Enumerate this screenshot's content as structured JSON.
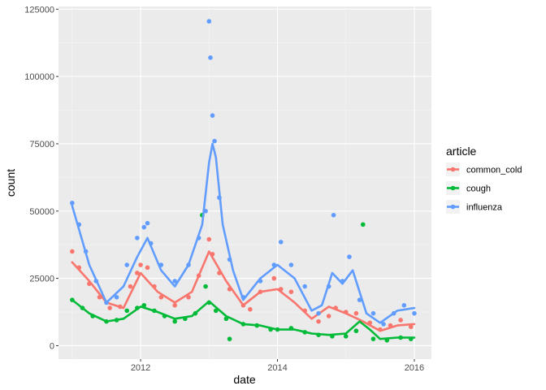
{
  "chart_data": {
    "type": "scatter",
    "xlabel": "date",
    "ylabel": "count",
    "legend_title": "article",
    "legend_position": "right",
    "grid": true,
    "xlim": [
      2010.8,
      2016.25
    ],
    "ylim": [
      -5000,
      126000
    ],
    "x_ticks": [
      2012,
      2014,
      2016
    ],
    "x_tick_labels": [
      "2012",
      "2014",
      "2016"
    ],
    "y_ticks": [
      0,
      25000,
      50000,
      75000,
      100000,
      125000
    ],
    "y_tick_labels": [
      "0",
      "25000",
      "50000",
      "75000",
      "100000",
      "125000"
    ],
    "series": [
      {
        "name": "common_cold",
        "color": "#F8766D",
        "x": [
          2011.0,
          2011.1,
          2011.25,
          2011.4,
          2011.55,
          2011.7,
          2011.85,
          2011.95,
          2012.0,
          2012.1,
          2012.2,
          2012.3,
          2012.5,
          2012.7,
          2012.85,
          2013.0,
          2013.05,
          2013.15,
          2013.3,
          2013.5,
          2013.6,
          2013.75,
          2013.95,
          2014.05,
          2014.2,
          2014.4,
          2014.6,
          2014.75,
          2014.85,
          2015.0,
          2015.15,
          2015.35,
          2015.5,
          2015.65,
          2015.8,
          2015.95
        ],
        "y": [
          35000,
          29000,
          23000,
          18000,
          14000,
          14500,
          22000,
          27000,
          30000,
          29000,
          22000,
          18000,
          15000,
          18000,
          26000,
          39500,
          34000,
          27000,
          21000,
          15000,
          13500,
          20000,
          25000,
          21000,
          20000,
          13000,
          9000,
          11000,
          14000,
          12500,
          12000,
          8500,
          6000,
          7500,
          9500,
          7000
        ],
        "trend_x": [
          2011.0,
          2011.25,
          2011.5,
          2011.75,
          2012.0,
          2012.25,
          2012.5,
          2012.75,
          2013.0,
          2013.25,
          2013.5,
          2013.75,
          2014.0,
          2014.25,
          2014.5,
          2014.75,
          2015.0,
          2015.25,
          2015.5,
          2015.75,
          2016.0
        ],
        "trend_y": [
          31000,
          24000,
          16000,
          14000,
          27000,
          20000,
          16000,
          20000,
          35000,
          24000,
          15000,
          20000,
          21000,
          16000,
          10000,
          14500,
          12000,
          9000,
          5500,
          7500,
          8000
        ]
      },
      {
        "name": "cough",
        "color": "#00BA38",
        "x": [
          2011.0,
          2011.15,
          2011.3,
          2011.5,
          2011.65,
          2011.8,
          2011.95,
          2012.05,
          2012.2,
          2012.35,
          2012.5,
          2012.65,
          2012.8,
          2012.9,
          2012.95,
          2013.0,
          2013.1,
          2013.25,
          2013.3,
          2013.5,
          2013.7,
          2013.9,
          2014.0,
          2014.2,
          2014.4,
          2014.6,
          2014.8,
          2015.0,
          2015.15,
          2015.25,
          2015.4,
          2015.6,
          2015.8,
          2015.95
        ],
        "y": [
          17000,
          14000,
          11000,
          9000,
          9500,
          13000,
          14000,
          15000,
          13000,
          11000,
          9000,
          10000,
          12000,
          48500,
          22000,
          16000,
          13000,
          10000,
          2500,
          8000,
          7500,
          6000,
          6000,
          6500,
          5000,
          4000,
          3500,
          3500,
          5500,
          45000,
          2500,
          2000,
          3000,
          2500
        ],
        "trend_x": [
          2011.0,
          2011.25,
          2011.5,
          2011.75,
          2012.0,
          2012.25,
          2012.5,
          2012.75,
          2013.0,
          2013.25,
          2013.5,
          2013.75,
          2014.0,
          2014.25,
          2014.5,
          2014.75,
          2015.0,
          2015.2,
          2015.35,
          2015.5,
          2015.75,
          2016.0
        ],
        "trend_y": [
          17000,
          12000,
          9000,
          10000,
          14500,
          12500,
          10000,
          11000,
          16500,
          11000,
          8000,
          7500,
          6000,
          6000,
          4500,
          4000,
          4500,
          9000,
          6000,
          2500,
          3000,
          3000
        ]
      },
      {
        "name": "influenza",
        "color": "#619CFF",
        "x": [
          2011.0,
          2011.1,
          2011.2,
          2011.35,
          2011.5,
          2011.65,
          2011.8,
          2011.95,
          2012.05,
          2012.1,
          2012.15,
          2012.3,
          2012.5,
          2012.7,
          2012.85,
          2012.95,
          2013.0,
          2013.02,
          2013.05,
          2013.08,
          2013.15,
          2013.3,
          2013.5,
          2013.75,
          2013.95,
          2014.05,
          2014.2,
          2014.4,
          2014.6,
          2014.75,
          2014.82,
          2014.95,
          2015.05,
          2015.2,
          2015.4,
          2015.55,
          2015.7,
          2015.85,
          2016.0
        ],
        "y": [
          53000,
          45000,
          35000,
          24000,
          16000,
          18000,
          30000,
          40000,
          44000,
          45500,
          38000,
          30000,
          24000,
          30000,
          40000,
          50000,
          120500,
          107000,
          85500,
          76000,
          55000,
          32000,
          18000,
          24000,
          30000,
          38500,
          30000,
          22000,
          12000,
          22000,
          48500,
          24000,
          33000,
          17000,
          12000,
          8000,
          12000,
          15000,
          12000
        ],
        "trend_x": [
          2011.0,
          2011.25,
          2011.5,
          2011.75,
          2011.95,
          2012.1,
          2012.3,
          2012.5,
          2012.7,
          2012.9,
          2013.0,
          2013.05,
          2013.1,
          2013.2,
          2013.35,
          2013.5,
          2013.75,
          2014.0,
          2014.25,
          2014.5,
          2014.65,
          2014.8,
          2014.95,
          2015.1,
          2015.3,
          2015.5,
          2015.75,
          2016.0
        ],
        "trend_y": [
          52000,
          30000,
          16000,
          22000,
          33000,
          40000,
          28000,
          22000,
          30000,
          45000,
          68000,
          75000,
          70000,
          45000,
          28000,
          17000,
          25000,
          30000,
          25000,
          13000,
          15000,
          27000,
          23000,
          28000,
          12000,
          8500,
          13000,
          14000
        ]
      }
    ]
  }
}
